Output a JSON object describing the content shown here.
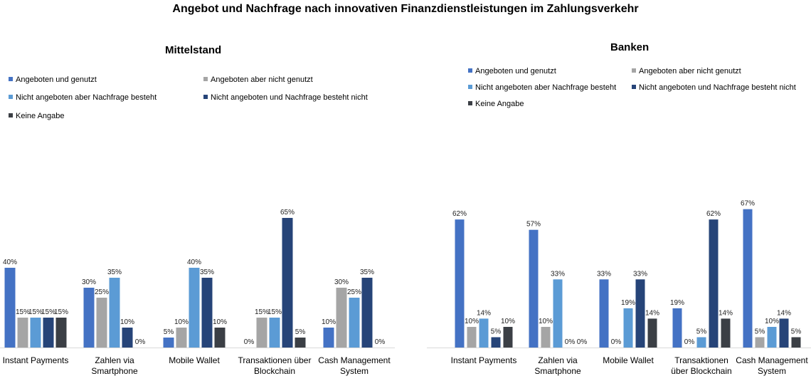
{
  "title": "Angebot und Nachfrage nach innovativen Finanzdienstleistungen im Zahlungsverkehr",
  "chart_data": [
    {
      "type": "bar",
      "title": "Mittelstand",
      "categories": [
        "Instant Payments",
        "Zahlen via|Smartphone",
        "Mobile Wallet",
        "Transaktionen über|Blockchain",
        "Cash Management|System"
      ],
      "ylim": [
        0,
        100
      ],
      "legend": "top",
      "series": [
        {
          "name": "Angeboten und genutzt",
          "color": "#4472C4",
          "values": [
            40,
            30,
            5,
            0,
            10
          ]
        },
        {
          "name": "Angeboten aber nicht genutzt",
          "color": "#A5A5A5",
          "values": [
            15,
            25,
            10,
            15,
            30
          ]
        },
        {
          "name": "Nicht angeboten aber Nachfrage besteht",
          "color": "#5B9BD5",
          "values": [
            15,
            35,
            40,
            15,
            25
          ]
        },
        {
          "name": "Nicht angeboten und Nachfrage besteht nicht",
          "color": "#264478",
          "values": [
            15,
            10,
            35,
            65,
            35
          ]
        },
        {
          "name": "Keine Angabe",
          "color": "#3B3F45",
          "values": [
            15,
            0,
            10,
            5,
            0
          ]
        }
      ]
    },
    {
      "type": "bar",
      "title": "Banken",
      "categories": [
        "Instant Payments",
        "Zahlen via|Smartphone",
        "Mobile Wallet",
        "Transaktionen|über Blockchain",
        "Cash Management|System"
      ],
      "ylim": [
        0,
        100
      ],
      "legend": "top",
      "series": [
        {
          "name": "Angeboten und genutzt",
          "color": "#4472C4",
          "values": [
            62,
            57,
            33,
            19,
            67
          ]
        },
        {
          "name": "Angeboten aber nicht genutzt",
          "color": "#A5A5A5",
          "values": [
            10,
            10,
            0,
            0,
            5
          ]
        },
        {
          "name": "Nicht angeboten aber Nachfrage besteht",
          "color": "#5B9BD5",
          "values": [
            14,
            33,
            19,
            5,
            10
          ]
        },
        {
          "name": "Nicht angeboten und Nachfrage besteht nicht",
          "color": "#264478",
          "values": [
            5,
            0,
            33,
            62,
            14
          ]
        },
        {
          "name": "Keine Angabe",
          "color": "#3B3F45",
          "values": [
            10,
            0,
            14,
            14,
            5
          ]
        }
      ]
    }
  ]
}
